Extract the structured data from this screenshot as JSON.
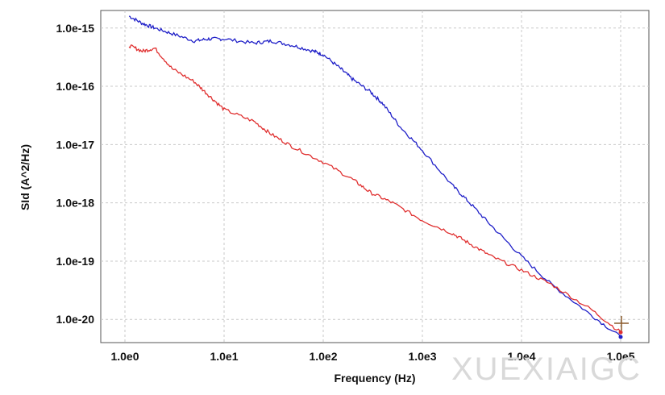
{
  "chart_data": {
    "type": "line",
    "title": "",
    "xlabel": "Frequency (Hz)",
    "ylabel": "SId (A^2/Hz)",
    "x_scale": "log",
    "y_scale": "log",
    "xlim": [
      1,
      100000
    ],
    "ylim": [
      4e-21,
      2e-15
    ],
    "grid": true,
    "x_ticks": [
      1,
      10,
      100,
      1000,
      10000,
      100000
    ],
    "x_tick_labels": [
      "1.0e0",
      "1.0e1",
      "1.0e2",
      "1.0e3",
      "1.0e4",
      "1.0e5"
    ],
    "y_ticks": [
      1e-15,
      1e-16,
      1e-17,
      1e-18,
      1e-19,
      1e-20
    ],
    "y_tick_labels": [
      "1.0e-15",
      "1.0e-16",
      "1.0e-17",
      "1.0e-18",
      "1.0e-19",
      "1.0e-20"
    ],
    "series": [
      {
        "color": "#2020c8",
        "x": [
          1.1,
          1.5,
          2,
          3,
          5,
          7,
          10,
          20,
          30,
          50,
          80,
          100,
          150,
          200,
          300,
          400,
          600,
          1000,
          2000,
          3000,
          5000,
          10000,
          20000,
          50000,
          100000
        ],
        "y": [
          1.6e-15,
          1.2e-15,
          1e-15,
          8e-16,
          6e-16,
          6.5e-16,
          6.5e-16,
          5.5e-16,
          6e-16,
          5e-16,
          4e-16,
          3.5e-16,
          2e-16,
          1.3e-16,
          8e-17,
          5e-17,
          2e-17,
          8e-18,
          2e-18,
          1e-18,
          4e-19,
          1.2e-19,
          4e-20,
          1.2e-20,
          5e-21
        ]
      },
      {
        "color": "#e03030",
        "x": [
          1.1,
          1.5,
          2,
          3,
          5,
          7,
          10,
          20,
          30,
          50,
          100,
          200,
          300,
          500,
          1000,
          2000,
          3000,
          5000,
          10000,
          20000,
          50000,
          100000
        ],
        "y": [
          5e-16,
          4e-16,
          4.5e-16,
          2e-16,
          1.2e-16,
          7e-17,
          4e-17,
          2.5e-17,
          1.5e-17,
          9e-18,
          5e-18,
          2.5e-18,
          1.5e-18,
          1e-18,
          5e-19,
          3e-19,
          2e-19,
          1.2e-19,
          7e-20,
          4e-20,
          1.5e-20,
          6e-21
        ]
      }
    ]
  },
  "watermark": "XUEXIAIGC"
}
